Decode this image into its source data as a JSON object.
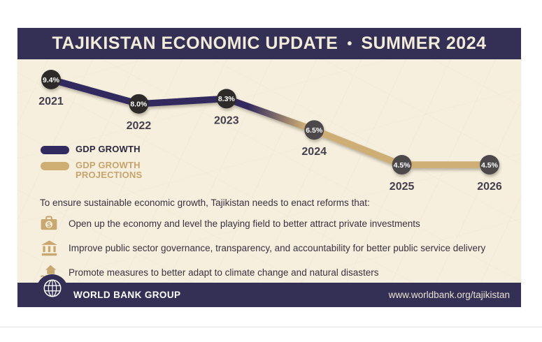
{
  "header": {
    "title_main": "TAJIKISTAN ECONOMIC UPDATE",
    "separator": "•",
    "title_season": "SUMMER 2024"
  },
  "chart_data": {
    "type": "line",
    "title": "",
    "categories": [
      "2021",
      "2022",
      "2023",
      "2024",
      "2025",
      "2026"
    ],
    "values": [
      9.4,
      8.0,
      8.3,
      6.5,
      4.5,
      4.5
    ],
    "point_labels": [
      "9.4%",
      "8.0%",
      "8.3%",
      "6.5%",
      "4.5%",
      "4.5%"
    ],
    "projection_start_index": 3,
    "series": [
      {
        "name": "GDP GROWTH",
        "years": [
          "2021",
          "2022",
          "2023"
        ],
        "values": [
          9.4,
          8.0,
          8.3
        ],
        "color": "#322b5f"
      },
      {
        "name": "GDP GROWTH PROJECTIONS",
        "years": [
          "2024",
          "2025",
          "2026"
        ],
        "values": [
          6.5,
          4.5,
          4.5
        ],
        "color": "#cfae74"
      }
    ],
    "ylim": [
      4,
      10
    ],
    "grid": false,
    "legend_position": "middle-left"
  },
  "reforms": {
    "intro": "To ensure sustainable economic growth, Tajikistan needs to enact reforms that:",
    "items": [
      {
        "icon": "investment-briefcase-icon",
        "text": "Open up the economy and level the playing field to better attract private investments"
      },
      {
        "icon": "government-bank-icon",
        "text": "Improve public sector governance, transparency, and accountability for better public service delivery"
      },
      {
        "icon": "climate-flood-icon",
        "text": "Promote measures to better adapt to climate change and natural disasters"
      }
    ]
  },
  "footer": {
    "brand": "WORLD BANK GROUP",
    "url": "www.worldbank.org/tajikistan"
  },
  "colors": {
    "header_navy": "#343055",
    "card_cream": "#f6efde",
    "line_navy": "#322b5f",
    "line_tan": "#cfae74",
    "actual_point": "#2d2b2c",
    "projection_point": "#4d4a4b",
    "year_label": "#443f4e",
    "icon_tan": "#c9a771"
  }
}
